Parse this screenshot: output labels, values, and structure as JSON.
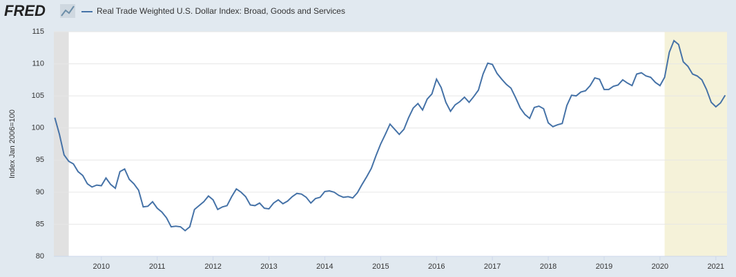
{
  "chart_data": {
    "type": "line",
    "logo": "FRED",
    "y_label": "Index Jan 2006=100",
    "xlim": [
      2009.15,
      2021.2
    ],
    "xticks": [
      {
        "value": 2010,
        "label": "2010"
      },
      {
        "value": 2011,
        "label": "2011"
      },
      {
        "value": 2012,
        "label": "2012"
      },
      {
        "value": 2013,
        "label": "2013"
      },
      {
        "value": 2014,
        "label": "2014"
      },
      {
        "value": 2015,
        "label": "2015"
      },
      {
        "value": 2016,
        "label": "2016"
      },
      {
        "value": 2017,
        "label": "2017"
      },
      {
        "value": 2018,
        "label": "2018"
      },
      {
        "value": 2019,
        "label": "2019"
      },
      {
        "value": 2020,
        "label": "2020"
      },
      {
        "value": 2021,
        "label": "2021"
      }
    ],
    "ylim": [
      80,
      115
    ],
    "yticks": [
      80,
      85,
      90,
      95,
      100,
      105,
      110,
      115
    ],
    "grid": true,
    "shaded_periods": [
      {
        "range": [
          2009.15,
          2009.417
        ],
        "color": "#e1e1e1"
      },
      {
        "range": [
          2020.083,
          2021.2
        ],
        "color": "#f5f2d9"
      }
    ],
    "x": [
      2009.167,
      2009.25,
      2009.333,
      2009.417,
      2009.5,
      2009.583,
      2009.667,
      2009.75,
      2009.833,
      2009.917,
      2010.0,
      2010.083,
      2010.167,
      2010.25,
      2010.333,
      2010.417,
      2010.5,
      2010.583,
      2010.667,
      2010.75,
      2010.833,
      2010.917,
      2011.0,
      2011.083,
      2011.167,
      2011.25,
      2011.333,
      2011.417,
      2011.5,
      2011.583,
      2011.667,
      2011.75,
      2011.833,
      2011.917,
      2012.0,
      2012.083,
      2012.167,
      2012.25,
      2012.333,
      2012.417,
      2012.5,
      2012.583,
      2012.667,
      2012.75,
      2012.833,
      2012.917,
      2013.0,
      2013.083,
      2013.167,
      2013.25,
      2013.333,
      2013.417,
      2013.5,
      2013.583,
      2013.667,
      2013.75,
      2013.833,
      2013.917,
      2014.0,
      2014.083,
      2014.167,
      2014.25,
      2014.333,
      2014.417,
      2014.5,
      2014.583,
      2014.667,
      2014.75,
      2014.833,
      2014.917,
      2015.0,
      2015.083,
      2015.167,
      2015.25,
      2015.333,
      2015.417,
      2015.5,
      2015.583,
      2015.667,
      2015.75,
      2015.833,
      2015.917,
      2016.0,
      2016.083,
      2016.167,
      2016.25,
      2016.333,
      2016.417,
      2016.5,
      2016.583,
      2016.667,
      2016.75,
      2016.833,
      2016.917,
      2017.0,
      2017.083,
      2017.167,
      2017.25,
      2017.333,
      2017.417,
      2017.5,
      2017.583,
      2017.667,
      2017.75,
      2017.833,
      2017.917,
      2018.0,
      2018.083,
      2018.167,
      2018.25,
      2018.333,
      2018.417,
      2018.5,
      2018.583,
      2018.667,
      2018.75,
      2018.833,
      2018.917,
      2019.0,
      2019.083,
      2019.167,
      2019.25,
      2019.333,
      2019.417,
      2019.5,
      2019.583,
      2019.667,
      2019.75,
      2019.833,
      2019.917,
      2020.0,
      2020.083,
      2020.167,
      2020.25,
      2020.333,
      2020.417,
      2020.5,
      2020.583,
      2020.667,
      2020.75,
      2020.833,
      2020.917,
      2021.0,
      2021.083,
      2021.167
    ],
    "series": [
      {
        "name": "Real Trade Weighted U.S. Dollar Index: Broad, Goods and Services",
        "color": "#4572a7",
        "values": [
          101.6,
          99.0,
          95.8,
          94.8,
          94.4,
          93.2,
          92.6,
          91.3,
          90.8,
          91.1,
          91.0,
          92.2,
          91.2,
          90.6,
          93.2,
          93.6,
          92.0,
          91.3,
          90.3,
          87.7,
          87.8,
          88.5,
          87.5,
          86.9,
          86.0,
          84.6,
          84.7,
          84.6,
          84.0,
          84.6,
          87.3,
          87.9,
          88.5,
          89.4,
          88.8,
          87.3,
          87.7,
          87.9,
          89.3,
          90.5,
          90.0,
          89.3,
          88.0,
          87.9,
          88.3,
          87.5,
          87.4,
          88.3,
          88.8,
          88.2,
          88.6,
          89.3,
          89.8,
          89.7,
          89.2,
          88.3,
          89.0,
          89.2,
          90.1,
          90.2,
          90.0,
          89.5,
          89.2,
          89.3,
          89.1,
          89.9,
          91.2,
          92.4,
          93.7,
          95.7,
          97.5,
          99.0,
          100.6,
          99.8,
          99.0,
          99.8,
          101.6,
          103.1,
          103.8,
          102.8,
          104.5,
          105.3,
          107.6,
          106.3,
          104.0,
          102.6,
          103.6,
          104.1,
          104.8,
          104.0,
          104.9,
          105.9,
          108.4,
          110.1,
          109.9,
          108.5,
          107.6,
          106.8,
          106.2,
          104.7,
          103.1,
          102.1,
          101.5,
          103.2,
          103.4,
          103.0,
          100.8,
          100.2,
          100.5,
          100.7,
          103.5,
          105.1,
          105.0,
          105.6,
          105.8,
          106.6,
          107.8,
          107.6,
          106.0,
          106.0,
          106.5,
          106.7,
          107.5,
          107.0,
          106.6,
          108.4,
          108.6,
          108.1,
          107.9,
          107.1,
          106.6,
          107.9,
          111.8,
          113.6,
          113.0,
          110.3,
          109.6,
          108.4,
          108.1,
          107.5,
          106.0,
          104.0,
          103.3,
          103.9,
          105.1
        ]
      }
    ]
  }
}
